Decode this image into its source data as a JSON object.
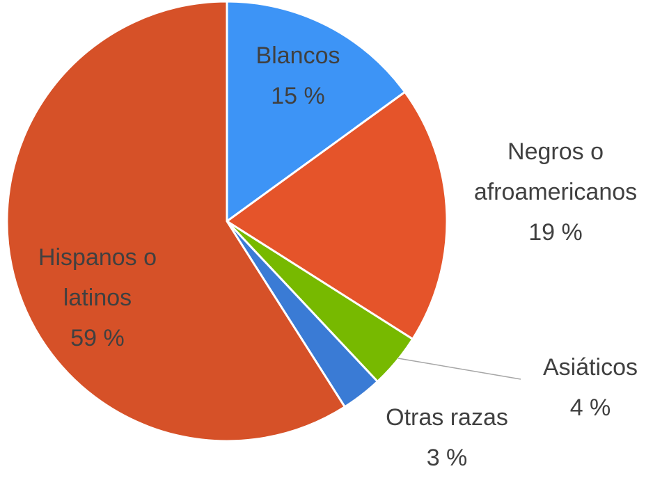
{
  "chart_data": {
    "type": "pie",
    "categories": [
      "Blancos",
      "Negros o afroamericanos",
      "Asiáticos",
      "Otras razas",
      "Hispanos o latinos"
    ],
    "values": [
      15,
      19,
      4,
      3,
      59
    ],
    "value_labels": [
      "15 %",
      "19 %",
      "4 %",
      "3 %",
      "59 %"
    ],
    "colors": [
      "#3d94f6",
      "#e5542a",
      "#77b900",
      "#3a7bd5",
      "#d65128"
    ]
  }
}
